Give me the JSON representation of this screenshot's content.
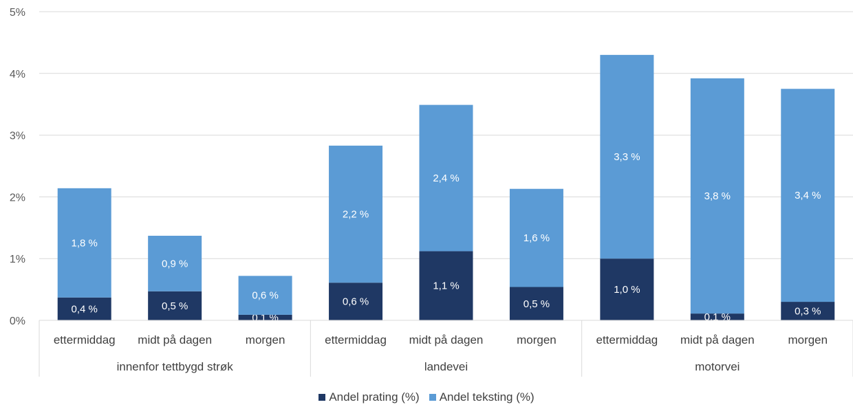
{
  "chart_data": {
    "type": "bar",
    "stacked": true,
    "groups": [
      "innenfor tettbygd strøk",
      "landevei",
      "motorvei"
    ],
    "categories": [
      "ettermiddag",
      "midt på dagen",
      "morgen",
      "ettermiddag",
      "midt på dagen",
      "morgen",
      "ettermiddag",
      "midt på dagen",
      "morgen"
    ],
    "series": [
      {
        "name": "Andel prating (%)",
        "color": "#1f3864",
        "values": [
          0.37,
          0.47,
          0.09,
          0.61,
          1.12,
          0.54,
          1.0,
          0.11,
          0.3
        ],
        "labels": [
          "0,4 %",
          "0,5 %",
          "0,1 %",
          "0,6 %",
          "1,1 %",
          "0,5 %",
          "1,0 %",
          "0,1 %",
          "0,3 %"
        ]
      },
      {
        "name": "Andel teksting (%)",
        "color": "#5b9bd5",
        "values": [
          1.77,
          0.9,
          0.63,
          2.22,
          2.37,
          1.59,
          3.3,
          3.81,
          3.45
        ],
        "labels": [
          "1,8 %",
          "0,9 %",
          "0,6 %",
          "2,2 %",
          "2,4 %",
          "1,6 %",
          "3,3 %",
          "3,8 %",
          "3,4 %"
        ]
      }
    ],
    "yticks": [
      "0%",
      "1%",
      "2%",
      "3%",
      "4%",
      "5%"
    ],
    "ylim": [
      0,
      5
    ],
    "grid": true,
    "legend_position": "bottom"
  }
}
